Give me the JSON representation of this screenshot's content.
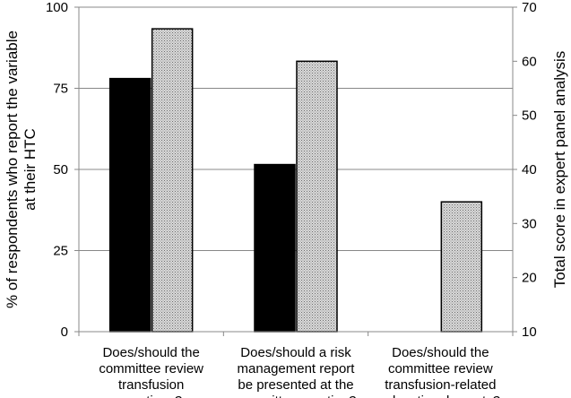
{
  "chart_data": {
    "type": "bar",
    "categories": [
      [
        "Does/should the",
        "committee review",
        "transfusion",
        "reactions?"
      ],
      [
        "Does/should a risk",
        "management report",
        "be presented at the",
        "committee meeting?"
      ],
      [
        "Does/should the",
        "committee review",
        "transfusion-related",
        "educational events?"
      ]
    ],
    "series": [
      {
        "axis": "left",
        "values": [
          78,
          51.5,
          null
        ],
        "color": "#000000",
        "fill": "solid"
      },
      {
        "axis": "right",
        "values": [
          66,
          60,
          34
        ],
        "color": "#bbbbbb",
        "fill": "dotted"
      }
    ],
    "left_axis": {
      "label_lines": [
        "% of respondents who report the variable",
        "at their HTC"
      ],
      "ylim": [
        0,
        100
      ],
      "ticks": [
        0,
        25,
        50,
        75,
        100
      ]
    },
    "right_axis": {
      "label": "Total score in expert panel analysis",
      "ylim": [
        10,
        70
      ],
      "ticks": [
        10,
        20,
        30,
        40,
        50,
        60,
        70
      ]
    },
    "grid": true
  }
}
